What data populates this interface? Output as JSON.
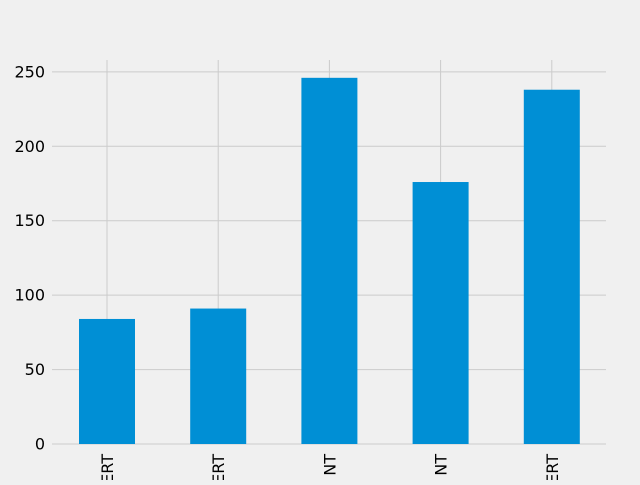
{
  "chart_data": {
    "type": "bar",
    "categories": [
      "ERT",
      "ERT",
      "NT",
      "NT",
      "ERT"
    ],
    "values": [
      84,
      91,
      246,
      176,
      238
    ],
    "ylim": [
      0,
      262
    ],
    "yticks": [
      0,
      50,
      100,
      150,
      200,
      250
    ],
    "title": "",
    "xlabel": "",
    "ylabel": "",
    "grid": true,
    "legend": "none",
    "colors": {
      "bar": "#008fd5",
      "grid": "#cbcbcb",
      "background": "#f0f0f0",
      "text": "#000000"
    }
  }
}
